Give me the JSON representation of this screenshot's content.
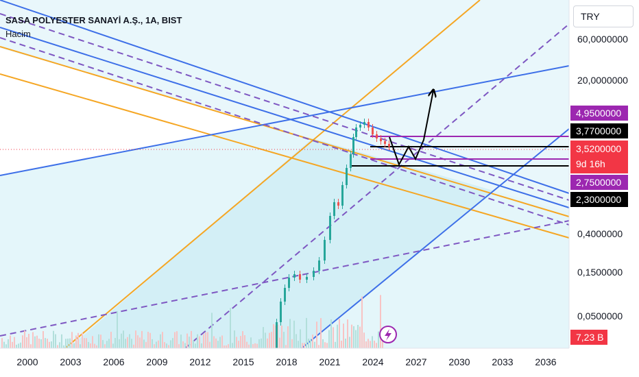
{
  "header": {
    "title": "SASA POLYESTER SANAYİ A.Ş., 1A, BIST",
    "subtitle": "Hacim"
  },
  "scale": {
    "currency": "TRY"
  },
  "chart_data": {
    "type": "line",
    "scale": "log",
    "x_tick_labels": [
      "2000",
      "2003",
      "2006",
      "2009",
      "2012",
      "2015",
      "2018",
      "2021",
      "2024",
      "2027",
      "2030",
      "2033",
      "2036"
    ],
    "y_tick_labels": [
      "60,0000000",
      "20,0000000",
      "0,4000000",
      "0,1500000",
      "0,0500000"
    ],
    "price_tags": [
      {
        "label": "4,9500000",
        "color": "#9c27b0"
      },
      {
        "label": "3,7700000",
        "color": "#000000"
      },
      {
        "label": "3,5200000",
        "color": "#f23645"
      },
      {
        "label": "9d 16h",
        "color": "#f23645"
      },
      {
        "label": "2,7500000",
        "color": "#9c27b0"
      },
      {
        "label": "2,3000000",
        "color": "#000000"
      },
      {
        "label": "7,23 B",
        "color": "#f23645"
      }
    ],
    "horizontal_levels": [
      4.95,
      3.77,
      3.52,
      2.75,
      2.3
    ],
    "projection": [
      [
        2025.0,
        3.7
      ],
      [
        2025.8,
        2.2
      ],
      [
        2026.7,
        3.5
      ],
      [
        2027.4,
        2.6
      ],
      [
        2028.2,
        3.9
      ],
      [
        2028.6,
        20.0
      ]
    ],
    "colors": {
      "blue": "#3d6fe8",
      "orange": "#f5a623",
      "purple": "#7e57c2",
      "candle_up": "#26a69a",
      "candle_down": "#ef5350",
      "channel": "#d6f1f7"
    }
  }
}
